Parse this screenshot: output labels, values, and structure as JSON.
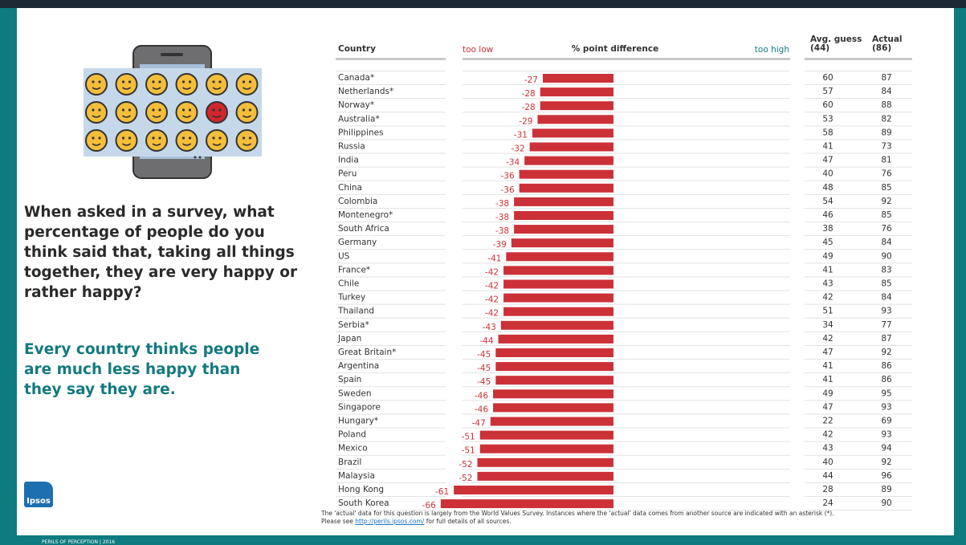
{
  "question": "When asked in a survey, what percentage of people do you think said that, taking all things together, they are very happy or rather happy?",
  "headline": "Every country thinks people are much less happy than they say they are.",
  "logo": "Ipsos",
  "note": {
    "line1": "The 'actual' data for this question is largely from the World Values Survey. Instances where the 'actual' data comes from another source are indicated with an asterisk (*).",
    "prefix": "Please see",
    "link": "http://perils.ipsos.com/",
    "suffix": "for full details of all sources."
  },
  "footer": "PERILS OF PERCEPTION | 2016",
  "chart_data": {
    "type": "bar",
    "category_header": "Country",
    "low_label": "too low",
    "high_label": "too high",
    "value_header": "% point difference",
    "guess_header": [
      "Avg. guess",
      "(44)"
    ],
    "actual_header": [
      "Actual",
      "(86)"
    ],
    "color": "#cc3138",
    "categories": [
      "Canada*",
      "Netherlands*",
      "Norway*",
      "Australia*",
      "Philippines",
      "Russia",
      "India",
      "Peru",
      "China",
      "Colombia",
      "Montenegro*",
      "South Africa",
      "Germany",
      "US",
      "France*",
      "Chile",
      "Turkey",
      "Thailand",
      "Serbia*",
      "Japan",
      "Great Britain*",
      "Argentina",
      "Spain",
      "Sweden",
      "Singapore",
      "Hungary*",
      "Poland",
      "Mexico",
      "Brazil",
      "Malaysia",
      "Hong Kong",
      "South Korea"
    ],
    "values": [
      -27,
      -28,
      -28,
      -29,
      -31,
      -32,
      -34,
      -36,
      -36,
      -38,
      -38,
      -38,
      -39,
      -41,
      -42,
      -42,
      -42,
      -42,
      -43,
      -44,
      -45,
      -45,
      -45,
      -46,
      -46,
      -47,
      -51,
      -51,
      -52,
      -52,
      -61,
      -66
    ],
    "avg_guess": [
      60,
      57,
      60,
      53,
      58,
      41,
      47,
      40,
      48,
      54,
      46,
      38,
      45,
      49,
      41,
      43,
      42,
      51,
      34,
      42,
      47,
      41,
      41,
      49,
      47,
      22,
      42,
      43,
      40,
      44,
      28,
      24
    ],
    "actual": [
      87,
      84,
      88,
      82,
      89,
      73,
      81,
      76,
      85,
      92,
      85,
      76,
      84,
      90,
      83,
      85,
      84,
      93,
      77,
      87,
      92,
      86,
      86,
      95,
      93,
      69,
      93,
      94,
      92,
      96,
      89,
      90
    ]
  }
}
